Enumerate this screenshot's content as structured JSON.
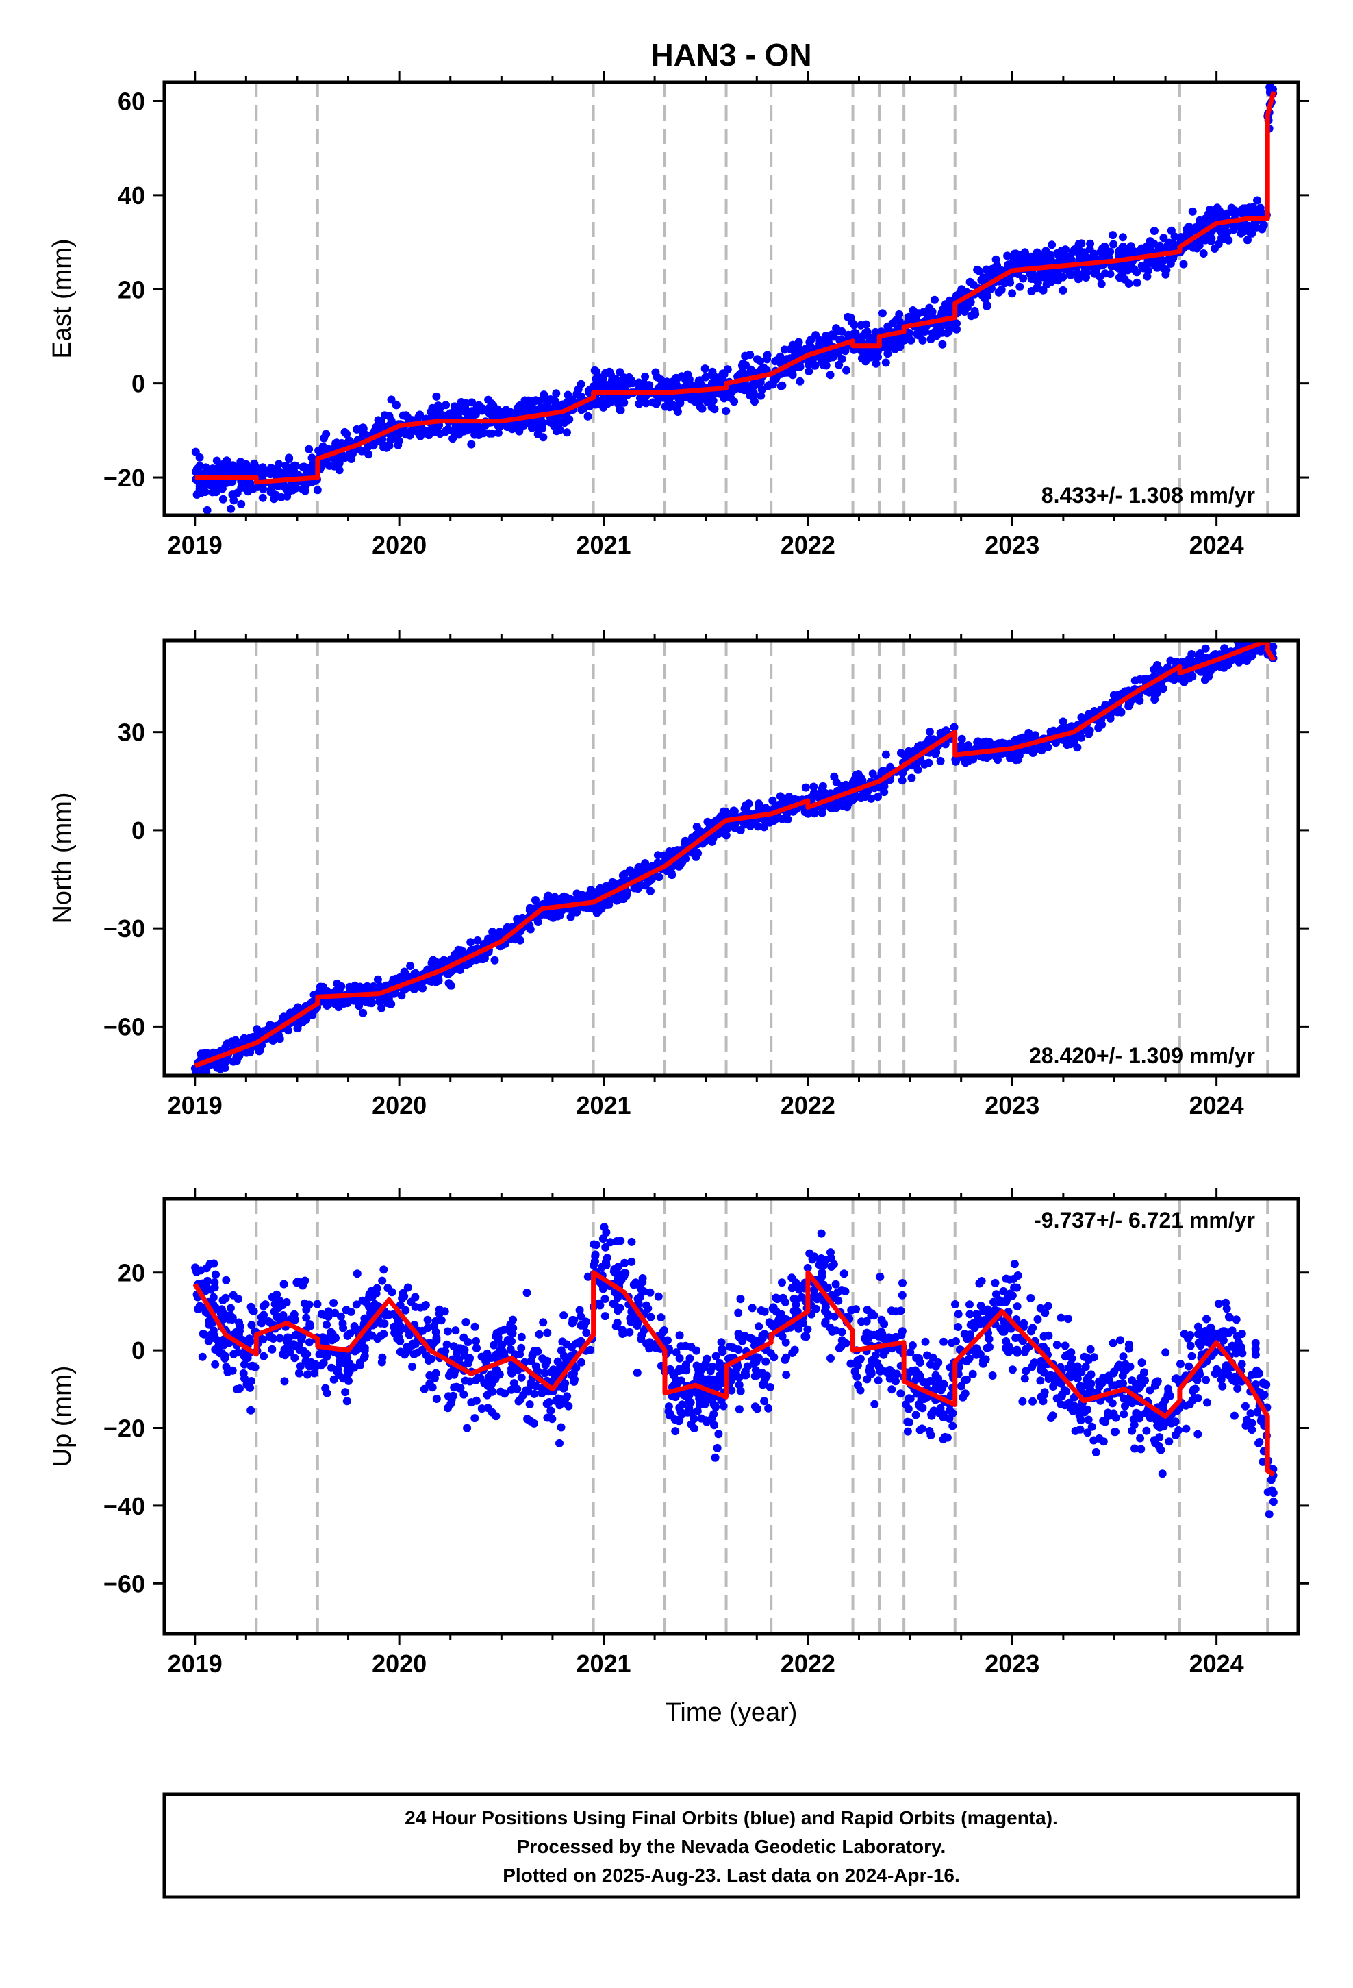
{
  "colors": {
    "final_orbits": "#0000ff",
    "model_fit": "#ff0000",
    "steps": "#bbbbbb",
    "frame": "#000000"
  },
  "title": "HAN3 - ON",
  "x_tick_labels": [
    "2019",
    "2020",
    "2021",
    "2022",
    "2023",
    "2024"
  ],
  "x_axis_label": "Time (year)",
  "footer": {
    "line1": "24 Hour Positions Using Final Orbits (blue) and Rapid Orbits (magenta).",
    "line2": "Processed by the Nevada Geodetic Laboratory.",
    "line3": "Plotted on 2025-Aug-23. Last data on 2024-Apr-16."
  },
  "chart_data": [
    {
      "type": "scatter",
      "ylabel": "East (mm)",
      "xlim": [
        2018.85,
        2024.4
      ],
      "ylim": [
        -28,
        64
      ],
      "xticks": [
        2019,
        2020,
        2021,
        2022,
        2023,
        2024
      ],
      "yticks": [
        -20,
        0,
        20,
        40,
        60
      ],
      "ytick_labels": [
        "−20",
        "0",
        "20",
        "40",
        "60"
      ],
      "rate_label": "8.433+/- 1.308 mm/yr",
      "rate_position": "bottom-right",
      "step_epochs": [
        2019.3,
        2019.6,
        2020.95,
        2021.3,
        2021.6,
        2021.82,
        2022.22,
        2022.35,
        2022.47,
        2022.72,
        2023.82,
        2024.25
      ],
      "grid": false,
      "model_fit": {
        "x": [
          2019.0,
          2019.3,
          2019.3,
          2019.6,
          2019.6,
          2019.8,
          2020.0,
          2020.2,
          2020.5,
          2020.8,
          2020.95,
          2020.95,
          2021.3,
          2021.6,
          2021.6,
          2021.82,
          2022.0,
          2022.22,
          2022.22,
          2022.35,
          2022.35,
          2022.47,
          2022.47,
          2022.72,
          2022.72,
          2023.0,
          2023.5,
          2023.82,
          2023.82,
          2024.0,
          2024.15,
          2024.25,
          2024.25,
          2024.28
        ],
        "y": [
          -20,
          -20,
          -21,
          -20,
          -16,
          -13,
          -9,
          -8,
          -8,
          -6,
          -3,
          -2,
          -2,
          -1,
          0,
          2,
          6,
          9,
          8,
          8,
          10,
          11,
          12,
          14,
          17,
          24,
          26,
          28,
          29,
          34,
          35,
          35,
          57,
          62
        ]
      },
      "scatter": {
        "x_start": 2019.0,
        "x_end": 2024.28,
        "count": 1900,
        "noise_mm": 2.0
      }
    },
    {
      "type": "scatter",
      "ylabel": "North (mm)",
      "xlim": [
        2018.85,
        2024.4
      ],
      "ylim": [
        -75,
        58
      ],
      "xticks": [
        2019,
        2020,
        2021,
        2022,
        2023,
        2024
      ],
      "yticks": [
        -60,
        -30,
        0,
        30
      ],
      "ytick_labels": [
        "−60",
        "−30",
        "0",
        "30"
      ],
      "rate_label": "28.420+/- 1.309 mm/yr",
      "rate_position": "bottom-right",
      "step_epochs": [
        2019.3,
        2019.6,
        2020.95,
        2021.3,
        2021.6,
        2021.82,
        2022.22,
        2022.35,
        2022.47,
        2022.72,
        2023.82,
        2024.25
      ],
      "grid": false,
      "model_fit": {
        "x": [
          2019.0,
          2019.3,
          2019.6,
          2019.6,
          2019.9,
          2020.2,
          2020.5,
          2020.7,
          2020.95,
          2021.3,
          2021.6,
          2021.82,
          2022.0,
          2022.0,
          2022.35,
          2022.72,
          2022.72,
          2023.0,
          2023.3,
          2023.6,
          2023.82,
          2023.82,
          2024.0,
          2024.25,
          2024.25,
          2024.28
        ],
        "y": [
          -72,
          -65,
          -53,
          -51,
          -50,
          -43,
          -34,
          -24,
          -22,
          -11,
          3,
          5,
          9,
          7,
          15,
          30,
          23,
          25,
          30,
          42,
          50,
          48,
          52,
          58,
          55,
          52
        ]
      },
      "scatter": {
        "x_start": 2019.0,
        "x_end": 2024.28,
        "count": 1900,
        "noise_mm": 1.8
      }
    },
    {
      "type": "scatter",
      "ylabel": "Up (mm)",
      "xlim": [
        2018.85,
        2024.4
      ],
      "ylim": [
        -73,
        39
      ],
      "xticks": [
        2019,
        2020,
        2021,
        2022,
        2023,
        2024
      ],
      "yticks": [
        -60,
        -40,
        -20,
        0,
        20
      ],
      "ytick_labels": [
        "−60",
        "−40",
        "−20",
        "0",
        "20"
      ],
      "rate_label": "-9.737+/- 6.721 mm/yr",
      "rate_position": "top-right",
      "step_epochs": [
        2019.3,
        2019.6,
        2020.95,
        2021.3,
        2021.6,
        2021.82,
        2022.22,
        2022.35,
        2022.47,
        2022.72,
        2023.82,
        2024.25
      ],
      "grid": false,
      "model_fit": {
        "x": [
          2019.0,
          2019.15,
          2019.3,
          2019.3,
          2019.45,
          2019.6,
          2019.6,
          2019.75,
          2019.95,
          2020.15,
          2020.35,
          2020.55,
          2020.75,
          2020.95,
          2020.95,
          2021.1,
          2021.3,
          2021.3,
          2021.45,
          2021.6,
          2021.6,
          2021.82,
          2021.82,
          2022.0,
          2022.0,
          2022.22,
          2022.22,
          2022.35,
          2022.35,
          2022.47,
          2022.47,
          2022.72,
          2022.72,
          2022.95,
          2023.15,
          2023.35,
          2023.55,
          2023.75,
          2023.82,
          2023.82,
          2024.0,
          2024.15,
          2024.25,
          2024.25,
          2024.28
        ],
        "y": [
          17,
          4,
          -1,
          4,
          7,
          3,
          1,
          0,
          13,
          0,
          -6,
          -2,
          -10,
          4,
          20,
          15,
          0,
          -11,
          -9,
          -12,
          -4,
          2,
          4,
          10,
          20,
          5,
          0,
          1,
          1,
          2,
          -8,
          -14,
          -3,
          10,
          -1,
          -13,
          -10,
          -17,
          -13,
          -10,
          2,
          -8,
          -17,
          -31,
          -32
        ]
      },
      "scatter": {
        "x_start": 2019.0,
        "x_end": 2024.28,
        "count": 1900,
        "noise_mm": 6.0
      }
    }
  ]
}
